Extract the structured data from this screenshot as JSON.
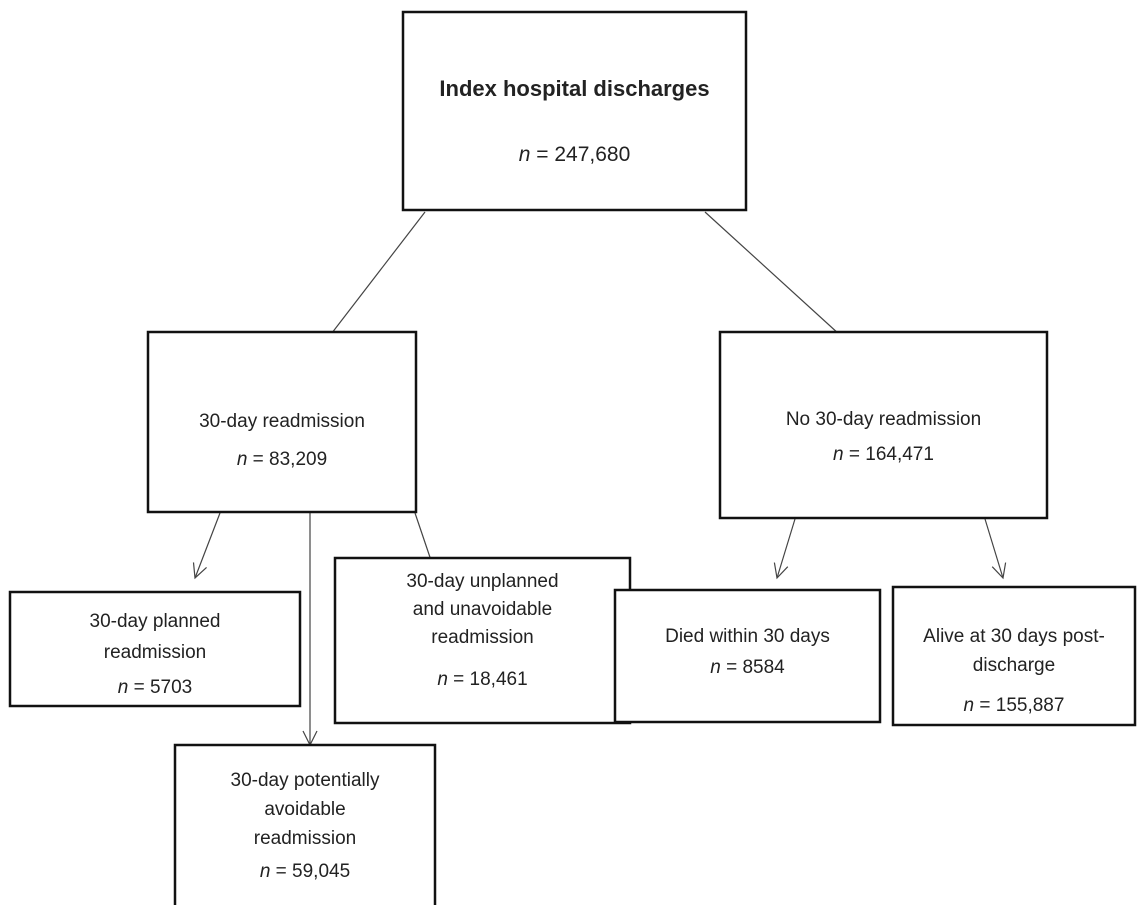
{
  "symbol": "n",
  "nodes": [
    {
      "lines": [
        "Index hospital discharges"
      ],
      "count": "= 247,680"
    },
    {
      "lines": [
        "30-day readmission"
      ],
      "count": "= 83,209"
    },
    {
      "lines": [
        "No 30-day readmission"
      ],
      "count": "= 164,471"
    },
    {
      "lines": [
        "30-day planned",
        "readmission"
      ],
      "count": "= 5703"
    },
    {
      "lines": [
        "30-day unplanned",
        "and unavoidable",
        "readmission"
      ],
      "count": "= 18,461"
    },
    {
      "lines": [
        "Died within 30 days"
      ],
      "count": "= 8584"
    },
    {
      "lines": [
        "Alive at 30 days post-",
        "discharge"
      ],
      "count": "= 155,887"
    },
    {
      "lines": [
        "30-day potentially",
        "avoidable",
        "readmission"
      ],
      "count": "= 59,045"
    }
  ]
}
